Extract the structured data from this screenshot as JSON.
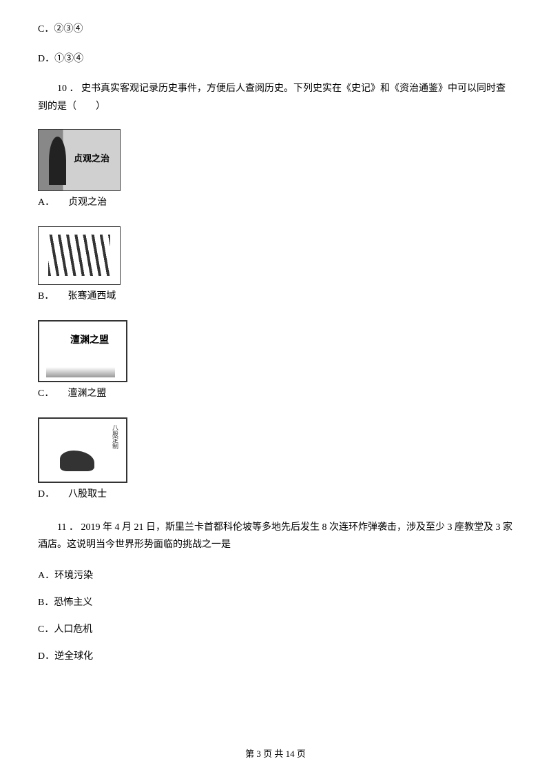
{
  "q9_remaining_options": {
    "c": "C．②③④",
    "d": "D．①③④"
  },
  "q10": {
    "number": "10 ．",
    "text": "史书真实客观记录历史事件，方便后人查阅历史。下列史实在《史记》和《资治通鉴》中可以同时查到的是（　　）",
    "options": {
      "a": {
        "letter": "A．",
        "label": "贞观之治"
      },
      "b": {
        "letter": "B．",
        "label": "张骞通西域"
      },
      "c": {
        "letter": "C．",
        "label": "澶渊之盟"
      },
      "d": {
        "letter": "D．",
        "label": "八股取士"
      }
    }
  },
  "q11": {
    "number": "11 ．",
    "text": "2019 年 4 月 21 日，斯里兰卡首都科伦坡等多地先后发生 8 次连环炸弹袭击，涉及至少 3 座教堂及 3 家酒店。这说明当今世界形势面临的挑战之一是",
    "options": {
      "a": "A．环境污染",
      "b": "B．恐怖主义",
      "c": "C．人口危机",
      "d": "D．逆全球化"
    }
  },
  "footer": "第 3 页 共 14 页"
}
